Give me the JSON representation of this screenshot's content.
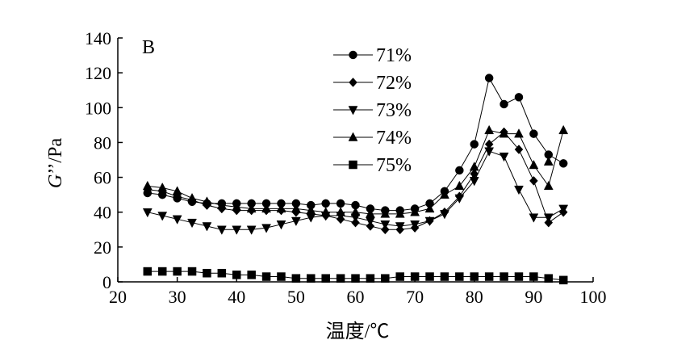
{
  "chart_data": {
    "type": "line",
    "panel_label": "B",
    "xlabel": "温度/℃",
    "ylabel_italic": "G",
    "ylabel_rest": "’’/Pa",
    "xlim": [
      20,
      100
    ],
    "ylim": [
      0,
      140
    ],
    "xticks": [
      20,
      30,
      40,
      50,
      60,
      70,
      80,
      90,
      100
    ],
    "yticks": [
      0,
      20,
      40,
      60,
      80,
      100,
      120,
      140
    ],
    "grid": false,
    "legend_position": "top-center",
    "series": [
      {
        "name": "71%",
        "marker": "circle",
        "x": [
          25,
          27.5,
          30,
          32.5,
          35,
          37.5,
          40,
          42.5,
          45,
          47.5,
          50,
          52.5,
          55,
          57.5,
          60,
          62.5,
          65,
          67.5,
          70,
          72.5,
          75,
          77.5,
          80,
          82.5,
          85,
          87.5,
          90,
          92.5,
          95
        ],
        "y": [
          51,
          50,
          48,
          46,
          45,
          45,
          45,
          45,
          45,
          45,
          45,
          44,
          45,
          45,
          44,
          42,
          41,
          41,
          42,
          45,
          52,
          64,
          79,
          117,
          102,
          106,
          85,
          73,
          68
        ],
        "x_extra": [],
        "y_extra": []
      },
      {
        "name": "72%",
        "marker": "diamond",
        "x": [
          25,
          27.5,
          30,
          32.5,
          35,
          37.5,
          40,
          42.5,
          45,
          47.5,
          50,
          52.5,
          55,
          57.5,
          60,
          62.5,
          65,
          67.5,
          70,
          72.5,
          75,
          77.5,
          80,
          82.5,
          85,
          87.5,
          90,
          92.5,
          95
        ],
        "y": [
          53,
          52,
          49,
          47,
          44,
          42,
          41,
          41,
          41,
          41,
          40,
          39,
          38,
          36,
          34,
          32,
          30,
          30,
          31,
          35,
          40,
          49,
          62,
          79,
          86,
          76,
          58,
          34,
          40
        ],
        "x_extra": [],
        "y_extra": []
      },
      {
        "name": "73%",
        "marker": "triangle-down",
        "x": [
          25,
          27.5,
          30,
          32.5,
          35,
          37.5,
          40,
          42.5,
          45,
          47.5,
          50,
          52.5,
          55,
          57.5,
          60,
          62.5,
          65,
          67.5,
          70,
          72.5,
          75,
          77.5,
          80,
          82.5,
          85,
          87.5,
          90,
          92.5,
          95
        ],
        "y": [
          40,
          38,
          36,
          34,
          32,
          30,
          30,
          30,
          31,
          33,
          35,
          37,
          38,
          38,
          37,
          35,
          33,
          32,
          33,
          35,
          39,
          48,
          58,
          75,
          72,
          53,
          37,
          37,
          42
        ],
        "x_extra": [],
        "y_extra": []
      },
      {
        "name": "74%",
        "marker": "triangle-up",
        "x": [
          25,
          27.5,
          30,
          32.5,
          35,
          37.5,
          40,
          42.5,
          45,
          47.5,
          50,
          52.5,
          55,
          57.5,
          60,
          62.5,
          65,
          67.5,
          70,
          72.5,
          75,
          77.5,
          80,
          82.5,
          85,
          87.5,
          90,
          92.5,
          95
        ],
        "y": [
          55,
          54,
          52,
          48,
          46,
          44,
          43,
          42,
          42,
          42,
          42,
          41,
          40,
          40,
          40,
          39,
          39,
          39,
          40,
          42,
          50,
          55,
          66,
          87,
          85,
          85,
          67,
          55,
          87
        ],
        "x_extra": [
          92.5
        ],
        "y_extra": [
          69
        ]
      },
      {
        "name": "75%",
        "marker": "square",
        "x": [
          25,
          27.5,
          30,
          32.5,
          35,
          37.5,
          40,
          42.5,
          45,
          47.5,
          50,
          52.5,
          55,
          57.5,
          60,
          62.5,
          65,
          67.5,
          70,
          72.5,
          75,
          77.5,
          80,
          82.5,
          85,
          87.5,
          90,
          92.5,
          95
        ],
        "y": [
          6,
          6,
          6,
          6,
          5,
          5,
          4,
          4,
          3,
          3,
          2,
          2,
          2,
          2,
          2,
          2,
          2,
          3,
          3,
          3,
          3,
          3,
          3,
          3,
          3,
          3,
          3,
          2,
          1
        ],
        "x_extra": [],
        "y_extra": []
      }
    ]
  }
}
